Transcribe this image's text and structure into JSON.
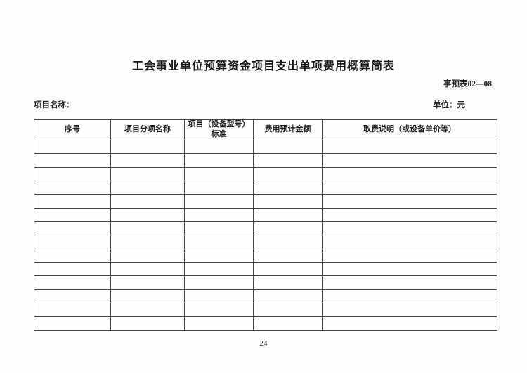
{
  "page": {
    "title": "工会事业单位预算资金项目支出单项费用概算简表",
    "form_code": "事预表02—08",
    "project_name_label": "项目名称：",
    "unit_label": "单位：元",
    "page_number": "24"
  },
  "table": {
    "columns": [
      "序号",
      "项目分项名称",
      "项目（设备型号）\n标准",
      "费用预计金额",
      "取费说明（或设备单价等）"
    ],
    "rows": [
      [
        "",
        "",
        "",
        "",
        ""
      ],
      [
        "",
        "",
        "",
        "",
        ""
      ],
      [
        "",
        "",
        "",
        "",
        ""
      ],
      [
        "",
        "",
        "",
        "",
        ""
      ],
      [
        "",
        "",
        "",
        "",
        ""
      ],
      [
        "",
        "",
        "",
        "",
        ""
      ],
      [
        "",
        "",
        "",
        "",
        ""
      ],
      [
        "",
        "",
        "",
        "",
        ""
      ],
      [
        "",
        "",
        "",
        "",
        ""
      ],
      [
        "",
        "",
        "",
        "",
        ""
      ],
      [
        "",
        "",
        "",
        "",
        ""
      ],
      [
        "",
        "",
        "",
        "",
        ""
      ],
      [
        "",
        "",
        "",
        "",
        ""
      ],
      [
        "",
        "",
        "",
        "",
        ""
      ]
    ]
  }
}
